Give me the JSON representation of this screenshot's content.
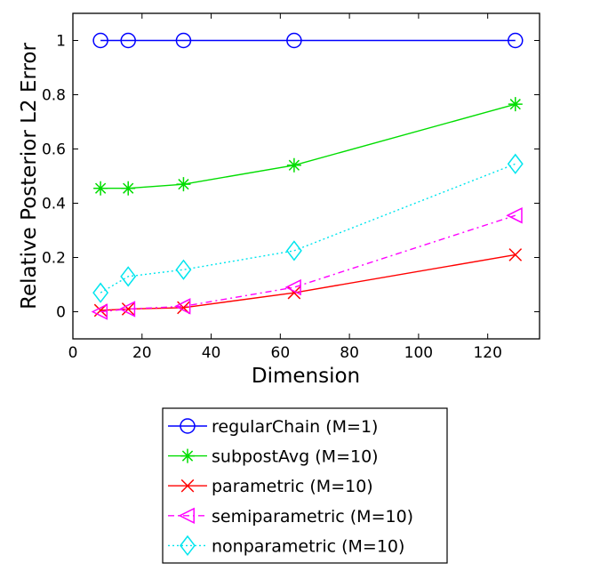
{
  "chart_data": {
    "type": "line",
    "title": "",
    "xlabel": "Dimension",
    "ylabel": "Relative Posterior L2 Error",
    "xlim": [
      0,
      135
    ],
    "ylim": [
      -0.1,
      1.1
    ],
    "xticks": [
      0,
      20,
      40,
      60,
      80,
      100,
      120
    ],
    "yticks": [
      0,
      0.2,
      0.4,
      0.6,
      0.8,
      1
    ],
    "x": [
      8,
      16,
      32,
      64,
      128
    ],
    "grid": false,
    "legend_position": "below the plot",
    "series": [
      {
        "name": "regularChain (M=1)",
        "values": [
          1.0,
          1.0,
          1.0,
          1.0,
          1.0
        ],
        "color": "#0000ff",
        "marker": "circle",
        "dash": "solid"
      },
      {
        "name": "subpostAvg (M=10)",
        "values": [
          0.455,
          0.455,
          0.47,
          0.54,
          0.765
        ],
        "color": "#00dd00",
        "marker": "asterisk",
        "dash": "solid"
      },
      {
        "name": "parametric (M=10)",
        "values": [
          0.005,
          0.01,
          0.015,
          0.07,
          0.21
        ],
        "color": "#ff0000",
        "marker": "x",
        "dash": "solid"
      },
      {
        "name": "semiparametric (M=10)",
        "values": [
          0.0,
          0.01,
          0.02,
          0.09,
          0.355
        ],
        "color": "#ff00ff",
        "marker": "triangle-left",
        "dash": "dashdot"
      },
      {
        "name": "nonparametric (M=10)",
        "values": [
          0.07,
          0.13,
          0.155,
          0.225,
          0.545
        ],
        "color": "#00e5ee",
        "marker": "diamond",
        "dash": "dotted"
      }
    ]
  }
}
